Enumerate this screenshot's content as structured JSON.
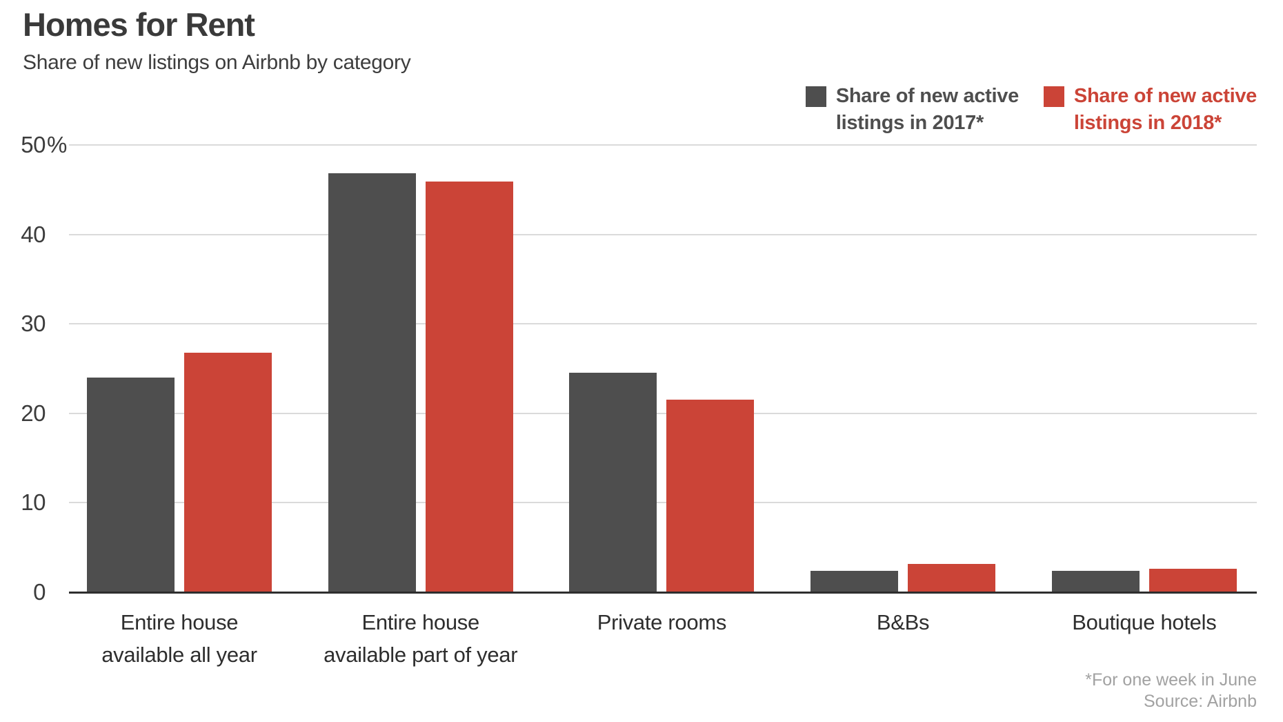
{
  "header": {
    "title": "Homes for Rent",
    "subtitle": "Share of new listings on Airbnb by category"
  },
  "legend": {
    "items": [
      {
        "label": "Share of new active\nlistings in 2017*",
        "color": "#4e4e4e",
        "year": "2017"
      },
      {
        "label": "Share of new active\nlistings in 2018*",
        "color": "#cb4437",
        "year": "2018"
      }
    ]
  },
  "footnote": {
    "line1": "*For one week in June",
    "line2": "Source: Airbnb"
  },
  "chart_data": {
    "type": "bar",
    "title": "Homes for Rent",
    "subtitle": "Share of new listings on Airbnb by category",
    "categories": [
      "Entire house\navailable all year",
      "Entire house\navailable part of year",
      "Private rooms",
      "B&Bs",
      "Boutique hotels"
    ],
    "series": [
      {
        "name": "Share of new active listings in 2017*",
        "year": "2017",
        "color": "#4e4e4e",
        "values": [
          24.0,
          46.8,
          24.5,
          2.4,
          2.4
        ]
      },
      {
        "name": "Share of new active listings in 2018*",
        "year": "2018",
        "color": "#cb4437",
        "values": [
          26.8,
          45.9,
          21.5,
          3.2,
          2.6
        ]
      }
    ],
    "xlabel": "",
    "ylabel": "",
    "ylim": [
      0,
      50
    ],
    "yticks": [
      {
        "label": "50",
        "suffix": "%",
        "value": 50
      },
      {
        "label": "40",
        "suffix": "",
        "value": 40
      },
      {
        "label": "30",
        "suffix": "",
        "value": 30
      },
      {
        "label": "20",
        "suffix": "",
        "value": 20
      },
      {
        "label": "10",
        "suffix": "",
        "value": 10
      },
      {
        "label": "0",
        "suffix": "",
        "value": 0
      }
    ],
    "grid": "horizontal",
    "legend_position": "top-right",
    "footnote": "*For one week in June",
    "source": "Source: Airbnb"
  }
}
